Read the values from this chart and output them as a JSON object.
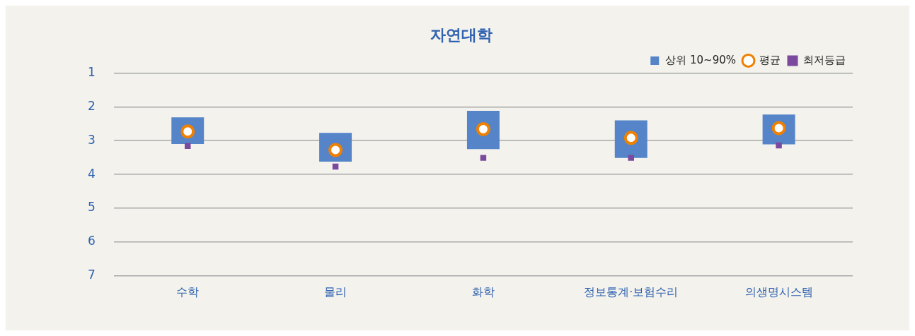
{
  "chart_data": {
    "type": "bar",
    "title": "자연대학",
    "categories": [
      "수학",
      "물리",
      "화학",
      "정보통계·보험수리",
      "의생명시스템"
    ],
    "series": [
      {
        "name": "상위 10~90%",
        "color": "#5585c8",
        "base": [
          2.31,
          2.77,
          2.12,
          2.4,
          2.23
        ],
        "values": [
          0.79,
          0.85,
          1.13,
          1.11,
          0.88
        ]
      },
      {
        "name": "평균",
        "type": "scatter",
        "marker": "circle",
        "color": "#f08000",
        "values": [
          2.73,
          3.28,
          2.66,
          2.92,
          2.63
        ]
      },
      {
        "name": "최저등급",
        "type": "scatter",
        "marker": "square",
        "color": "#7b4a9e",
        "values": [
          3.16,
          3.77,
          3.51,
          3.51,
          3.14
        ]
      }
    ],
    "ylim": [
      7,
      1
    ],
    "yticks": [
      1,
      2,
      3,
      4,
      5,
      6,
      7
    ],
    "grid": "y",
    "legend": "top right"
  }
}
